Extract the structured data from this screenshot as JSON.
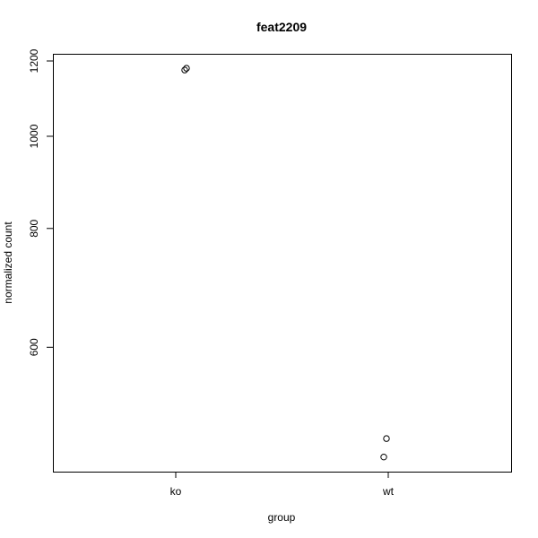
{
  "chart_data": {
    "type": "scatter",
    "title": "feat2209",
    "xlabel": "group",
    "ylabel": "normalized count",
    "categories": [
      "ko",
      "wt"
    ],
    "y_scale": "log",
    "ylim": [
      444,
      1221
    ],
    "yticks": [
      600,
      800,
      1000,
      1200
    ],
    "grid": false,
    "points": [
      {
        "group": "ko",
        "y": 1174
      },
      {
        "group": "ko",
        "y": 1179
      },
      {
        "group": "wt",
        "y": 481
      },
      {
        "group": "wt",
        "y": 460
      }
    ]
  }
}
